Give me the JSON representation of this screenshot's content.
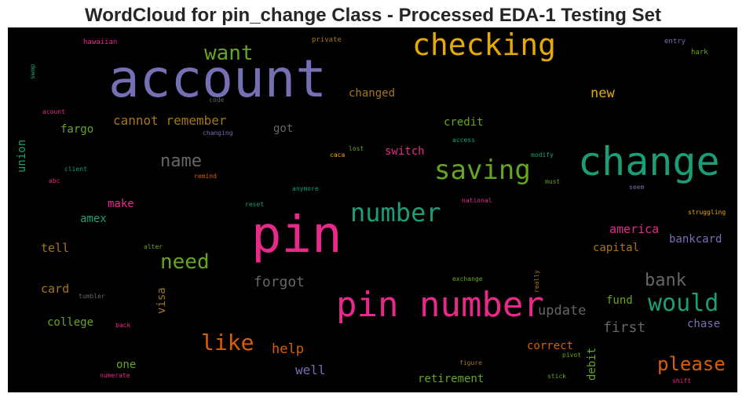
{
  "title": "WordCloud for pin_change Class - Processed EDA-1 Testing Set",
  "chart_data": {
    "type": "wordcloud",
    "title": "WordCloud for pin_change Class - Processed EDA-1 Testing Set",
    "words": [
      {
        "text": "account",
        "color": "#7570b3"
      },
      {
        "text": "pin",
        "color": "#e7298a"
      },
      {
        "text": "change",
        "color": "#1b9e77"
      },
      {
        "text": "pin number",
        "color": "#e7298a"
      },
      {
        "text": "checking",
        "color": "#e6ab02"
      },
      {
        "text": "saving",
        "color": "#66a61e"
      },
      {
        "text": "number",
        "color": "#1b9e77"
      },
      {
        "text": "want",
        "color": "#66a61e"
      },
      {
        "text": "would",
        "color": "#1b9e77"
      },
      {
        "text": "like",
        "color": "#d95f02"
      },
      {
        "text": "need",
        "color": "#66a61e"
      },
      {
        "text": "please",
        "color": "#d95f02"
      },
      {
        "text": "name",
        "color": "#666666"
      },
      {
        "text": "bank",
        "color": "#666666"
      },
      {
        "text": "forgot",
        "color": "#666666"
      },
      {
        "text": "first",
        "color": "#666666"
      },
      {
        "text": "update",
        "color": "#666666"
      },
      {
        "text": "cannot remember",
        "color": "#a6761d"
      },
      {
        "text": "new",
        "color": "#e6ab02"
      },
      {
        "text": "help",
        "color": "#d95f02"
      },
      {
        "text": "well",
        "color": "#7570b3"
      },
      {
        "text": "america",
        "color": "#e7298a"
      },
      {
        "text": "bankcard",
        "color": "#7570b3"
      },
      {
        "text": "capital",
        "color": "#a6761d"
      },
      {
        "text": "card",
        "color": "#a6761d"
      },
      {
        "text": "tell",
        "color": "#a6761d"
      },
      {
        "text": "changed",
        "color": "#a6761d"
      },
      {
        "text": "credit",
        "color": "#66a61e"
      },
      {
        "text": "got",
        "color": "#666666"
      },
      {
        "text": "fargo",
        "color": "#66a61e"
      },
      {
        "text": "union",
        "color": "#1b9e77"
      },
      {
        "text": "switch",
        "color": "#e7298a"
      },
      {
        "text": "amex",
        "color": "#1b9e77"
      },
      {
        "text": "make",
        "color": "#e7298a"
      },
      {
        "text": "college",
        "color": "#66a61e"
      },
      {
        "text": "visa",
        "color": "#a6761d"
      },
      {
        "text": "one",
        "color": "#66a61e"
      },
      {
        "text": "correct",
        "color": "#d95f02"
      },
      {
        "text": "retirement",
        "color": "#66a61e"
      },
      {
        "text": "fund",
        "color": "#66a61e"
      },
      {
        "text": "chase",
        "color": "#7570b3"
      },
      {
        "text": "debit",
        "color": "#66a61e"
      },
      {
        "text": "hawaiian",
        "color": "#e7298a"
      },
      {
        "text": "private",
        "color": "#a6761d"
      },
      {
        "text": "entry",
        "color": "#7570b3"
      },
      {
        "text": "hark",
        "color": "#66a61e"
      },
      {
        "text": "swap",
        "color": "#1b9e77"
      },
      {
        "text": "code",
        "color": "#666666"
      },
      {
        "text": "acount",
        "color": "#e7298a"
      },
      {
        "text": "changing",
        "color": "#7570b3"
      },
      {
        "text": "access",
        "color": "#1b9e77"
      },
      {
        "text": "lost",
        "color": "#66a61e"
      },
      {
        "text": "caca",
        "color": "#e6ab02"
      },
      {
        "text": "modify",
        "color": "#1b9e77"
      },
      {
        "text": "client",
        "color": "#1b9e77"
      },
      {
        "text": "remind",
        "color": "#d95f02"
      },
      {
        "text": "abc",
        "color": "#e7298a"
      },
      {
        "text": "must",
        "color": "#66a61e"
      },
      {
        "text": "anymore",
        "color": "#1b9e77"
      },
      {
        "text": "seem",
        "color": "#7570b3"
      },
      {
        "text": "reset",
        "color": "#1b9e77"
      },
      {
        "text": "national",
        "color": "#e7298a"
      },
      {
        "text": "struggling",
        "color": "#e6ab02"
      },
      {
        "text": "alter",
        "color": "#66a61e"
      },
      {
        "text": "exchange",
        "color": "#66a61e"
      },
      {
        "text": "really",
        "color": "#a6761d"
      },
      {
        "text": "tumbler",
        "color": "#666666"
      },
      {
        "text": "back",
        "color": "#e7298a"
      },
      {
        "text": "pivot",
        "color": "#66a61e"
      },
      {
        "text": "figure",
        "color": "#a6761d"
      },
      {
        "text": "numerate",
        "color": "#e7298a"
      },
      {
        "text": "stick",
        "color": "#66a61e"
      },
      {
        "text": "shift",
        "color": "#e7298a"
      }
    ]
  }
}
